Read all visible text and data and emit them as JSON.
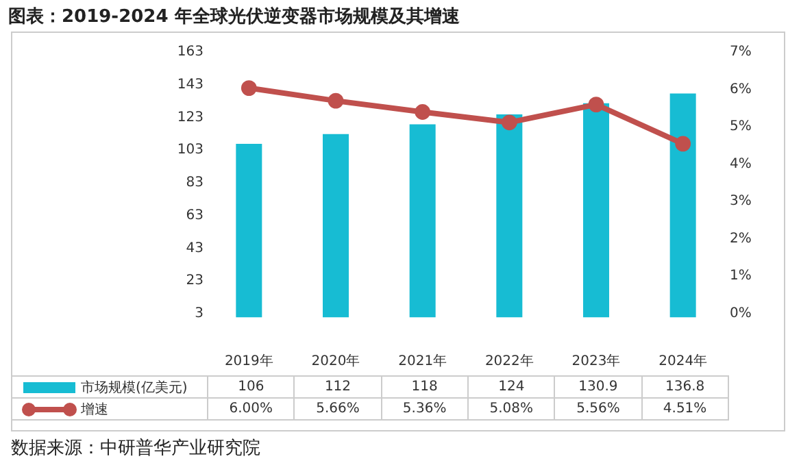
{
  "chart_data": {
    "type": "bar",
    "title": "图表：2019-2024 年全球光伏逆变器市场规模及其增速",
    "categories": [
      "2019年",
      "2020年",
      "2021年",
      "2022年",
      "2023年",
      "2024年"
    ],
    "series": [
      {
        "name": "市场规模(亿美元)",
        "color": "#17bcd3",
        "values": [
          106,
          112,
          118,
          124,
          130.9,
          136.8
        ],
        "value_labels": [
          "106",
          "112",
          "118",
          "124",
          "130.9",
          "136.8"
        ]
      },
      {
        "name": "增速",
        "type": "line",
        "axis": "y2",
        "color": "#c0504d",
        "marker": "circle",
        "values": [
          6.0,
          5.66,
          5.36,
          5.08,
          5.56,
          4.51
        ],
        "value_labels": [
          "6.00%",
          "5.66%",
          "5.36%",
          "5.08%",
          "5.56%",
          "4.51%"
        ]
      }
    ],
    "ylim": [
      3,
      163
    ],
    "yticks": [
      3,
      23,
      43,
      63,
      83,
      103,
      123,
      143,
      163
    ],
    "y2lim": [
      0,
      7
    ],
    "y2ticks": [
      {
        "value": 0,
        "label": "0%"
      },
      {
        "value": 1,
        "label": "1%"
      },
      {
        "value": 2,
        "label": "2%"
      },
      {
        "value": 3,
        "label": "3%"
      },
      {
        "value": 4,
        "label": "4%"
      },
      {
        "value": 5,
        "label": "5%"
      },
      {
        "value": 6,
        "label": "6%"
      },
      {
        "value": 7,
        "label": "7%"
      }
    ],
    "legend": "bottom",
    "annotations": [
      "数据来源：中研普华产业研究院"
    ]
  }
}
